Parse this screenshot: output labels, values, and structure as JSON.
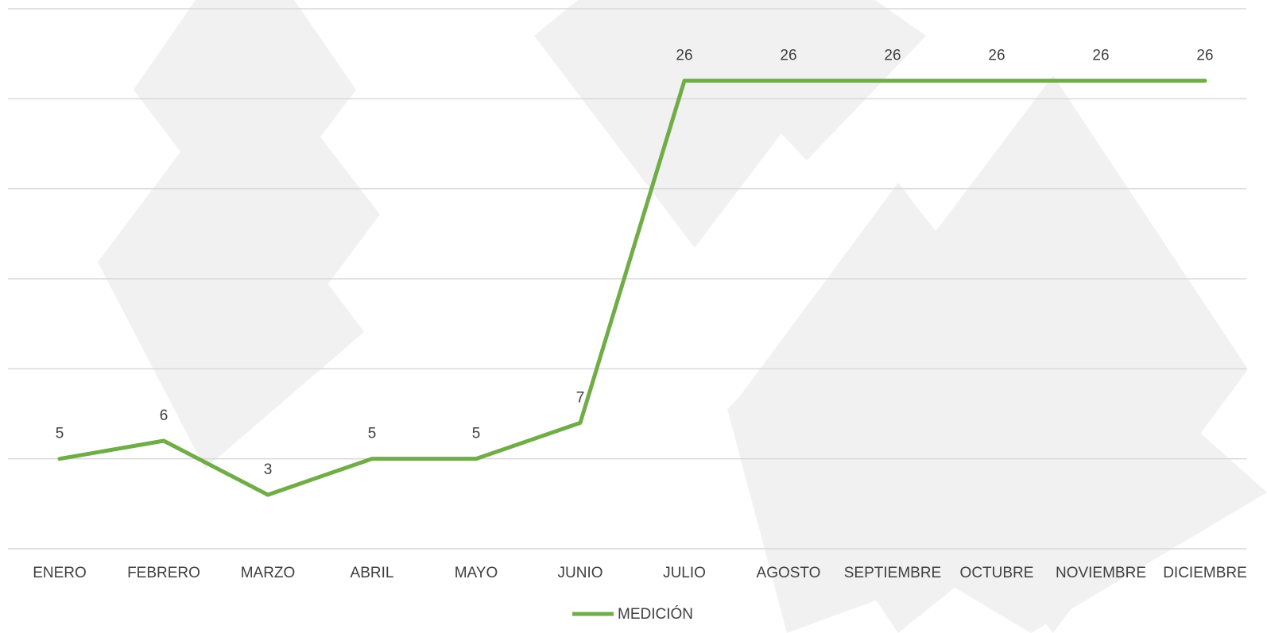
{
  "chart_data": {
    "type": "line",
    "categories": [
      "ENERO",
      "FEBRERO",
      "MARZO",
      "ABRIL",
      "MAYO",
      "JUNIO",
      "JULIO",
      "AGOSTO",
      "SEPTIEMBRE",
      "OCTUBRE",
      "NOVIEMBRE",
      "DICIEMBRE"
    ],
    "series": [
      {
        "name": "MEDICIÓN",
        "color": "#70ad47",
        "values": [
          5,
          6,
          3,
          5,
          5,
          7,
          26,
          26,
          26,
          26,
          26,
          26
        ]
      }
    ],
    "ylim": [
      0,
      30
    ],
    "yticks": [
      0,
      5,
      10,
      15,
      20,
      25,
      30
    ],
    "grid": true,
    "legend": "bottom"
  }
}
